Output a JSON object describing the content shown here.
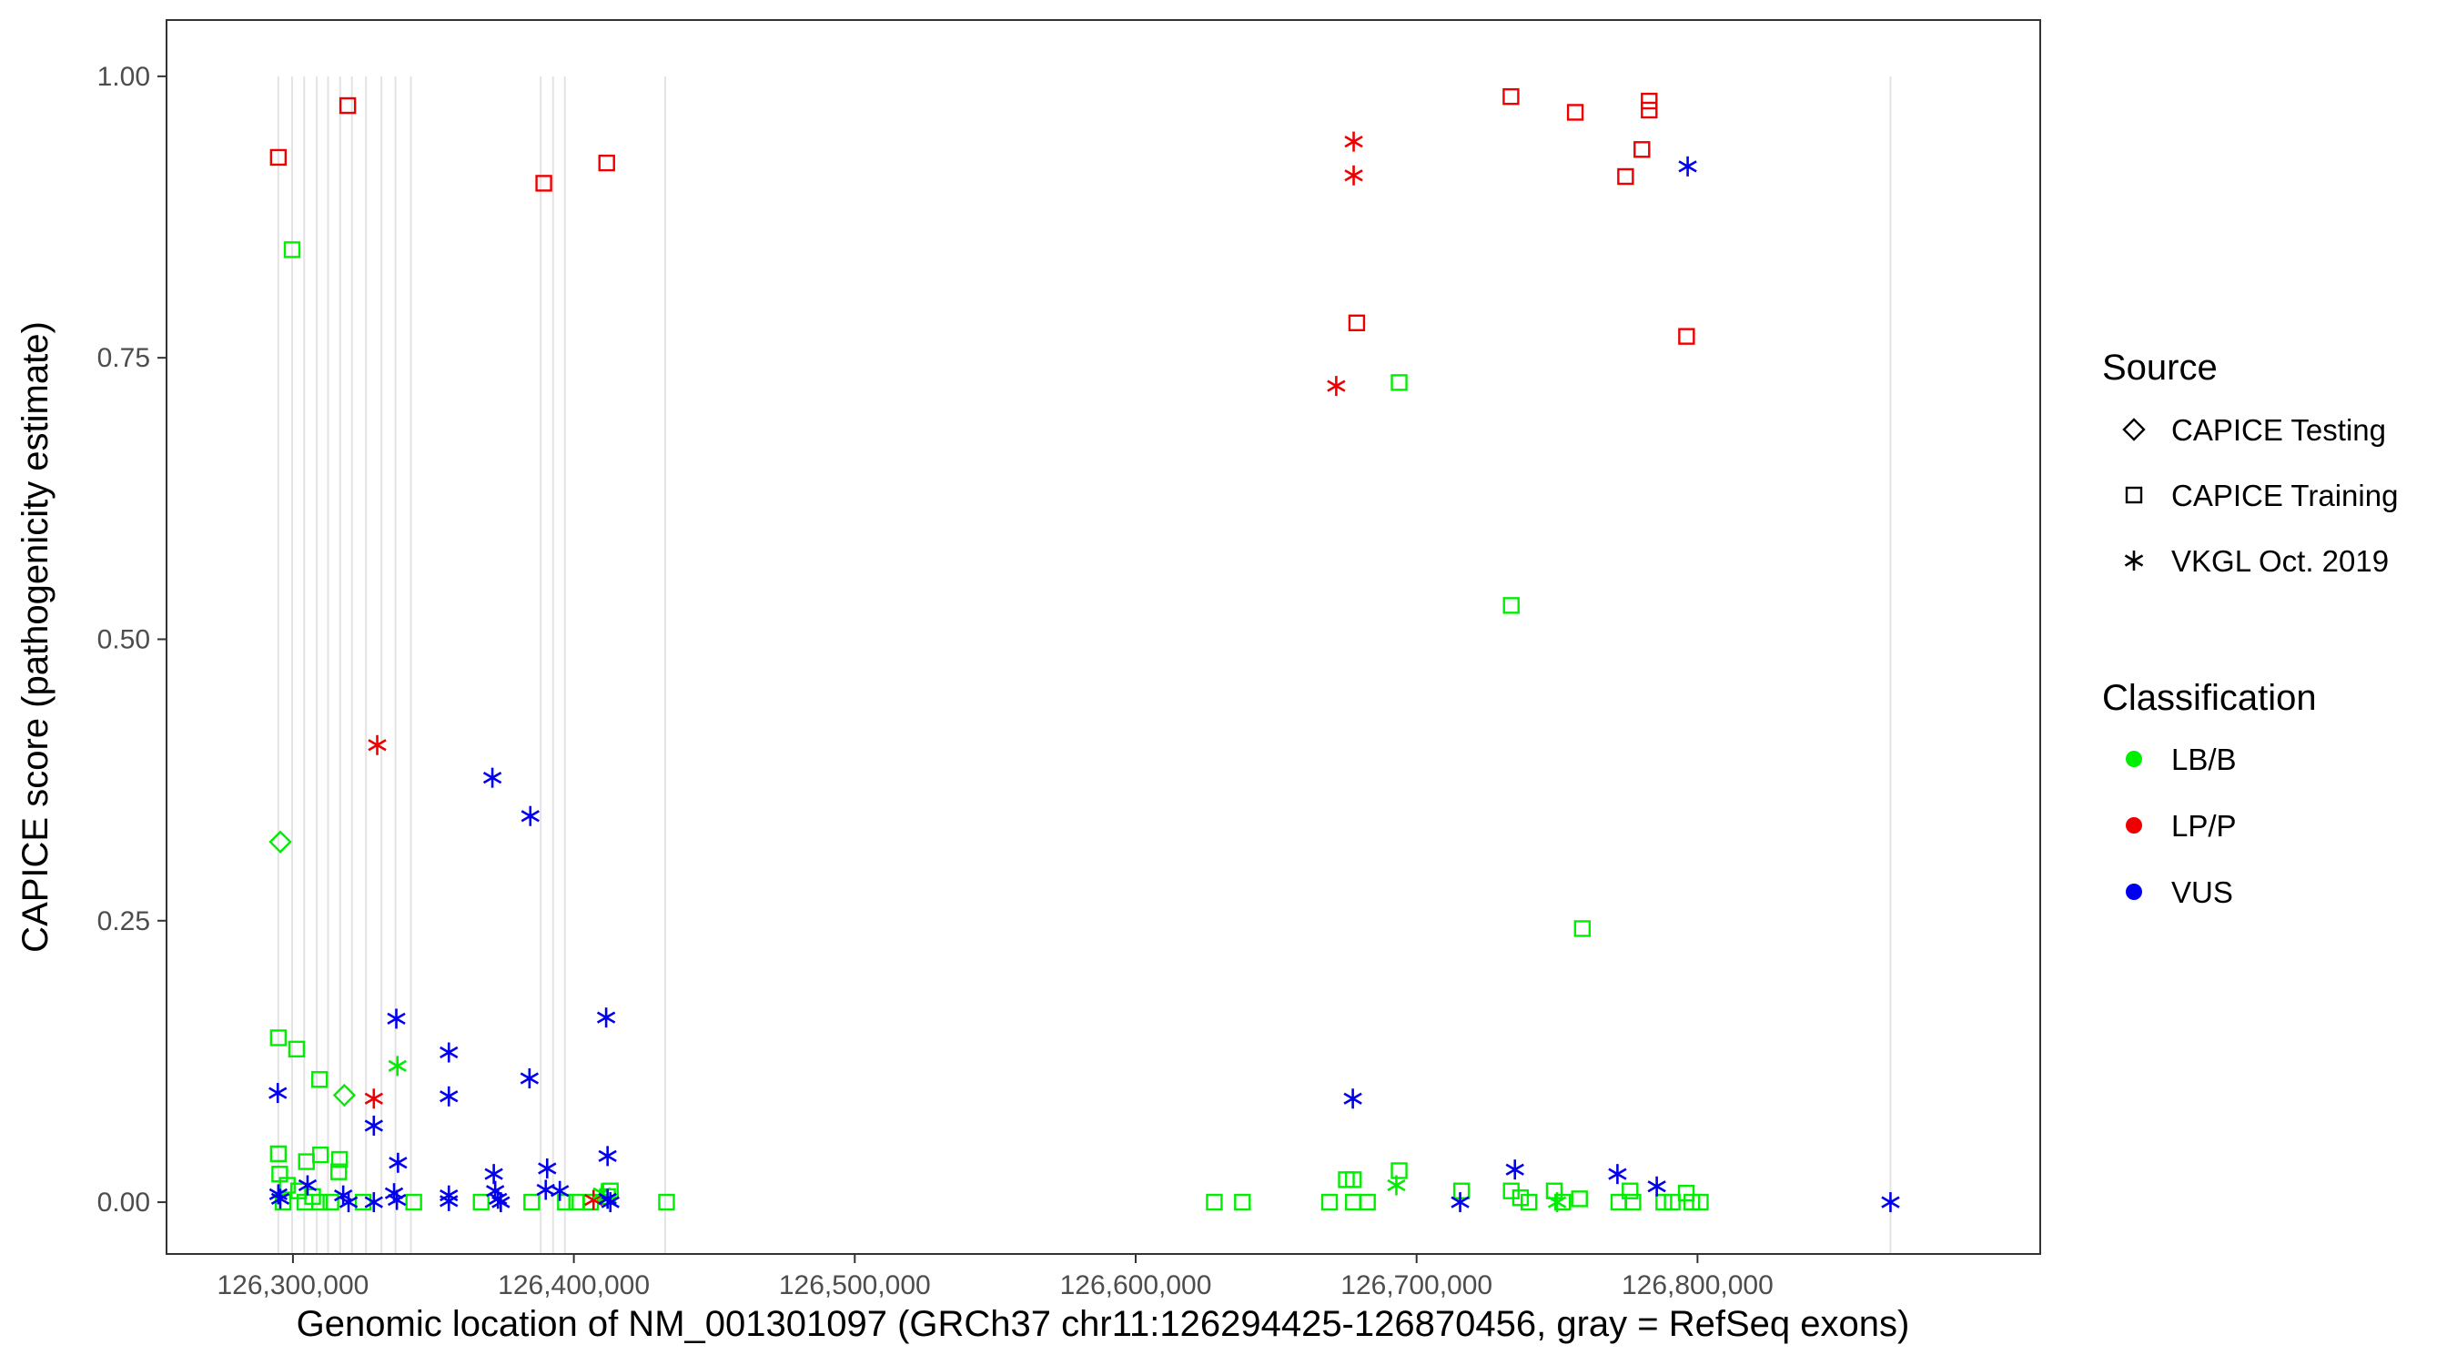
{
  "chart_data": {
    "type": "scatter",
    "xlabel": "Genomic location of NM_001301097 (GRCh37 chr11:126294425-126870456, gray = RefSeq exons)",
    "ylabel": "CAPICE score (pathogenicity estimate)",
    "xlim": [
      126255000,
      126922000
    ],
    "ylim": [
      -0.046,
      1.05
    ],
    "x_ticks": [
      126300000,
      126400000,
      126500000,
      126600000,
      126700000,
      126800000
    ],
    "x_tick_labels": [
      "126,300,000",
      "126,400,000",
      "126,500,000",
      "126,600,000",
      "126,700,000",
      "126,800,000"
    ],
    "y_ticks": [
      0.0,
      0.25,
      0.5,
      0.75,
      1.0
    ],
    "y_tick_labels": [
      "0.00",
      "0.25",
      "0.50",
      "0.75",
      "1.00"
    ],
    "grid": false,
    "exon_lines": [
      126294800,
      126299700,
      126304000,
      126308500,
      126312500,
      126316800,
      126321000,
      126326000,
      126331500,
      126336500,
      126342000,
      126388200,
      126392600,
      126396800,
      126432500,
      126868700
    ],
    "legend": {
      "position": "right",
      "source_title": "Source",
      "source_items": [
        {
          "label": "CAPICE Testing",
          "shape": "diamond"
        },
        {
          "label": "CAPICE Training",
          "shape": "square"
        },
        {
          "label": "VKGL Oct. 2019",
          "shape": "asterisk"
        }
      ],
      "class_title": "Classification",
      "class_items": [
        {
          "label": "LB/B",
          "color": "#00ee00"
        },
        {
          "label": "LP/P",
          "color": "#ee0000"
        },
        {
          "label": "VUS",
          "color": "#0000ee"
        }
      ]
    },
    "series": [
      {
        "name": "CAPICE Testing",
        "shape": "diamond",
        "points": [
          {
            "x": 126295500,
            "y": 0.32,
            "class": "LB/B"
          },
          {
            "x": 126318300,
            "y": 0.095,
            "class": "LB/B"
          }
        ]
      },
      {
        "name": "CAPICE Training",
        "shape": "square",
        "points": [
          {
            "x": 126294800,
            "y": 0.928,
            "class": "LP/P"
          },
          {
            "x": 126319500,
            "y": 0.974,
            "class": "LP/P"
          },
          {
            "x": 126389300,
            "y": 0.905,
            "class": "LP/P"
          },
          {
            "x": 126411700,
            "y": 0.923,
            "class": "LP/P"
          },
          {
            "x": 126678700,
            "y": 0.781,
            "class": "LP/P"
          },
          {
            "x": 126733600,
            "y": 0.982,
            "class": "LP/P"
          },
          {
            "x": 126756500,
            "y": 0.968,
            "class": "LP/P"
          },
          {
            "x": 126774400,
            "y": 0.911,
            "class": "LP/P"
          },
          {
            "x": 126780200,
            "y": 0.935,
            "class": "LP/P"
          },
          {
            "x": 126782800,
            "y": 0.978,
            "class": "LP/P"
          },
          {
            "x": 126782800,
            "y": 0.97,
            "class": "LP/P"
          },
          {
            "x": 126796100,
            "y": 0.769,
            "class": "LP/P"
          },
          {
            "x": 126299700,
            "y": 0.846,
            "class": "LB/B"
          },
          {
            "x": 126294800,
            "y": 0.146,
            "class": "LB/B"
          },
          {
            "x": 126301300,
            "y": 0.136,
            "class": "LB/B"
          },
          {
            "x": 126309500,
            "y": 0.109,
            "class": "LB/B"
          },
          {
            "x": 126294800,
            "y": 0.043,
            "class": "LB/B"
          },
          {
            "x": 126295300,
            "y": 0.025,
            "class": "LB/B"
          },
          {
            "x": 126304800,
            "y": 0.036,
            "class": "LB/B"
          },
          {
            "x": 126309800,
            "y": 0.042,
            "class": "LB/B"
          },
          {
            "x": 126316600,
            "y": 0.038,
            "class": "LB/B"
          },
          {
            "x": 126316300,
            "y": 0.027,
            "class": "LB/B"
          },
          {
            "x": 126298000,
            "y": 0.015,
            "class": "LB/B"
          },
          {
            "x": 126302000,
            "y": 0.01,
            "class": "LB/B"
          },
          {
            "x": 126307000,
            "y": 0.005,
            "class": "LB/B"
          },
          {
            "x": 126296500,
            "y": 0.0,
            "class": "LB/B"
          },
          {
            "x": 126304300,
            "y": 0.0,
            "class": "LB/B"
          },
          {
            "x": 126309500,
            "y": 0.0,
            "class": "LB/B"
          },
          {
            "x": 126313500,
            "y": 0.0,
            "class": "LB/B"
          },
          {
            "x": 126325000,
            "y": 0.0,
            "class": "LB/B"
          },
          {
            "x": 126343000,
            "y": 0.0,
            "class": "LB/B"
          },
          {
            "x": 126367000,
            "y": 0.0,
            "class": "LB/B"
          },
          {
            "x": 126385000,
            "y": 0.0,
            "class": "LB/B"
          },
          {
            "x": 126397000,
            "y": 0.0,
            "class": "LB/B"
          },
          {
            "x": 126401000,
            "y": 0.0,
            "class": "LB/B"
          },
          {
            "x": 126406000,
            "y": 0.0,
            "class": "LB/B"
          },
          {
            "x": 126412000,
            "y": 0.005,
            "class": "LB/B"
          },
          {
            "x": 126413000,
            "y": 0.01,
            "class": "LB/B"
          },
          {
            "x": 126433000,
            "y": 0.0,
            "class": "LB/B"
          },
          {
            "x": 126628000,
            "y": 0.0,
            "class": "LB/B"
          },
          {
            "x": 126638000,
            "y": 0.0,
            "class": "LB/B"
          },
          {
            "x": 126669000,
            "y": 0.0,
            "class": "LB/B"
          },
          {
            "x": 126675000,
            "y": 0.02,
            "class": "LB/B"
          },
          {
            "x": 126677500,
            "y": 0.02,
            "class": "LB/B"
          },
          {
            "x": 126677500,
            "y": 0.0,
            "class": "LB/B"
          },
          {
            "x": 126682500,
            "y": 0.0,
            "class": "LB/B"
          },
          {
            "x": 126693800,
            "y": 0.728,
            "class": "LB/B"
          },
          {
            "x": 126693800,
            "y": 0.028,
            "class": "LB/B"
          },
          {
            "x": 126716000,
            "y": 0.01,
            "class": "LB/B"
          },
          {
            "x": 126733700,
            "y": 0.53,
            "class": "LB/B"
          },
          {
            "x": 126733700,
            "y": 0.01,
            "class": "LB/B"
          },
          {
            "x": 126737000,
            "y": 0.004,
            "class": "LB/B"
          },
          {
            "x": 126740000,
            "y": 0.0,
            "class": "LB/B"
          },
          {
            "x": 126749000,
            "y": 0.01,
            "class": "LB/B"
          },
          {
            "x": 126752000,
            "y": 0.0,
            "class": "LB/B"
          },
          {
            "x": 126758000,
            "y": 0.003,
            "class": "LB/B"
          },
          {
            "x": 126759000,
            "y": 0.243,
            "class": "LB/B"
          },
          {
            "x": 126772000,
            "y": 0.0,
            "class": "LB/B"
          },
          {
            "x": 126776000,
            "y": 0.01,
            "class": "LB/B"
          },
          {
            "x": 126777000,
            "y": 0.0,
            "class": "LB/B"
          },
          {
            "x": 126788000,
            "y": 0.0,
            "class": "LB/B"
          },
          {
            "x": 126791000,
            "y": 0.0,
            "class": "LB/B"
          },
          {
            "x": 126796000,
            "y": 0.008,
            "class": "LB/B"
          },
          {
            "x": 126798000,
            "y": 0.0,
            "class": "LB/B"
          },
          {
            "x": 126801000,
            "y": 0.0,
            "class": "LB/B"
          }
        ]
      },
      {
        "name": "VKGL Oct. 2019",
        "shape": "asterisk",
        "points": [
          {
            "x": 126330000,
            "y": 0.406,
            "class": "LP/P"
          },
          {
            "x": 126328800,
            "y": 0.092,
            "class": "LP/P"
          },
          {
            "x": 126677600,
            "y": 0.942,
            "class": "LP/P"
          },
          {
            "x": 126677600,
            "y": 0.912,
            "class": "LP/P"
          },
          {
            "x": 126671400,
            "y": 0.725,
            "class": "LP/P"
          },
          {
            "x": 126407000,
            "y": 0.002,
            "class": "LP/P"
          },
          {
            "x": 126337200,
            "y": 0.121,
            "class": "LB/B"
          },
          {
            "x": 126692800,
            "y": 0.015,
            "class": "LB/B"
          },
          {
            "x": 126750000,
            "y": 0.0,
            "class": "LB/B"
          },
          {
            "x": 126410000,
            "y": 0.008,
            "class": "LB/B"
          },
          {
            "x": 126294600,
            "y": 0.097,
            "class": "VUS"
          },
          {
            "x": 126294800,
            "y": 0.007,
            "class": "VUS"
          },
          {
            "x": 126295500,
            "y": 0.003,
            "class": "VUS"
          },
          {
            "x": 126305200,
            "y": 0.015,
            "class": "VUS"
          },
          {
            "x": 126317900,
            "y": 0.006,
            "class": "VUS"
          },
          {
            "x": 126319800,
            "y": 0.0,
            "class": "VUS"
          },
          {
            "x": 126328800,
            "y": 0.068,
            "class": "VUS"
          },
          {
            "x": 126328800,
            "y": 0.0,
            "class": "VUS"
          },
          {
            "x": 126336800,
            "y": 0.163,
            "class": "VUS"
          },
          {
            "x": 126337400,
            "y": 0.035,
            "class": "VUS"
          },
          {
            "x": 126336000,
            "y": 0.008,
            "class": "VUS"
          },
          {
            "x": 126337000,
            "y": 0.002,
            "class": "VUS"
          },
          {
            "x": 126355500,
            "y": 0.133,
            "class": "VUS"
          },
          {
            "x": 126355500,
            "y": 0.094,
            "class": "VUS"
          },
          {
            "x": 126355500,
            "y": 0.006,
            "class": "VUS"
          },
          {
            "x": 126355500,
            "y": 0.001,
            "class": "VUS"
          },
          {
            "x": 126371000,
            "y": 0.377,
            "class": "VUS"
          },
          {
            "x": 126371500,
            "y": 0.025,
            "class": "VUS"
          },
          {
            "x": 126372000,
            "y": 0.01,
            "class": "VUS"
          },
          {
            "x": 126373000,
            "y": 0.003,
            "class": "VUS"
          },
          {
            "x": 126374000,
            "y": 0.0,
            "class": "VUS"
          },
          {
            "x": 126384500,
            "y": 0.343,
            "class": "VUS"
          },
          {
            "x": 126384200,
            "y": 0.11,
            "class": "VUS"
          },
          {
            "x": 126390500,
            "y": 0.03,
            "class": "VUS"
          },
          {
            "x": 126390000,
            "y": 0.011,
            "class": "VUS"
          },
          {
            "x": 126395000,
            "y": 0.01,
            "class": "VUS"
          },
          {
            "x": 126411500,
            "y": 0.164,
            "class": "VUS"
          },
          {
            "x": 126412000,
            "y": 0.041,
            "class": "VUS"
          },
          {
            "x": 126412000,
            "y": 0.003,
            "class": "VUS"
          },
          {
            "x": 126413000,
            "y": 0.0,
            "class": "VUS"
          },
          {
            "x": 126677300,
            "y": 0.092,
            "class": "VUS"
          },
          {
            "x": 126715500,
            "y": 0.0,
            "class": "VUS"
          },
          {
            "x": 126735000,
            "y": 0.029,
            "class": "VUS"
          },
          {
            "x": 126771500,
            "y": 0.025,
            "class": "VUS"
          },
          {
            "x": 126785500,
            "y": 0.014,
            "class": "VUS"
          },
          {
            "x": 126796500,
            "y": 0.92,
            "class": "VUS"
          },
          {
            "x": 126868700,
            "y": 0.0,
            "class": "VUS"
          }
        ]
      }
    ]
  }
}
